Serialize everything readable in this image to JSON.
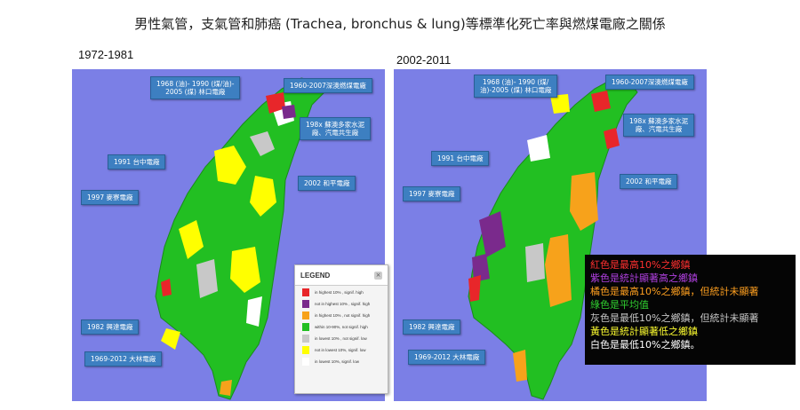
{
  "title": "男性氣管，支氣管和肺癌 (Trachea, bronchus & lung)等標準化死亡率與燃煤電廠之關係",
  "panels": [
    {
      "period": "1972-1981"
    },
    {
      "period": "2002-2011"
    }
  ],
  "callouts_left": [
    "1968 (油)- 1990 (煤/油)-\n2005 (煤) 林口電廠",
    "1960-2007深澳燃煤電廠",
    "198x 蘇澳多家水泥\n廠、汽電共生廠",
    "1991 台中電廠",
    "2002 和平電廠",
    "1997 麥寮電廠",
    "1982 興達電廠",
    "1969-2012 大林電廠"
  ],
  "callouts_right": [
    "1968 (油)- 1990 (煤/\n油)-2005 (煤) 林口電廠",
    "1960-2007深澳燃煤電廠",
    "198x 蘇澳多家水泥\n廠、汽電共生廠",
    "1991 台中電廠",
    "2002 和平電廠",
    "1997 麥寮電廠",
    "1982 興達電廠",
    "1969-2012 大林電廠"
  ],
  "legend": {
    "title": "LEGEND",
    "close": "×",
    "items": [
      {
        "label": "in highest 10% , signif. high",
        "color": "#e8262a"
      },
      {
        "label": "not in highest 10% , signif. high",
        "color": "#7a2a8c"
      },
      {
        "label": "in highest 10% , not signif. high",
        "color": "#f7a21b"
      },
      {
        "label": "within 10-90%, not signif. high",
        "color": "#22bf22"
      },
      {
        "label": "in lowest 10% , not signif. low",
        "color": "#c8c8c8"
      },
      {
        "label": "not in lowest 10%, signif. low",
        "color": "#ffff00"
      },
      {
        "label": "in lowest 10%, signif. low",
        "color": "#ffffff"
      }
    ]
  },
  "explanation": [
    {
      "text": "紅色是最高10%之鄉鎮",
      "color": "#ff3030"
    },
    {
      "text": "紫色是統計顯著高之鄉鎮",
      "color": "#b040e0"
    },
    {
      "text": "橘色是最高10%之鄉鎮，但統計未顯著",
      "color": "#ffa020"
    },
    {
      "text": "綠色是平均值",
      "color": "#30d030"
    },
    {
      "text": "灰色是最低10%之鄉鎮，但統計未顯著",
      "color": "#c8c8c8"
    },
    {
      "text": "黃色是統計顯著低之鄉鎮",
      "color": "#ffff30"
    },
    {
      "text": "白色是最低10%之鄉鎮。",
      "color": "#ffffff"
    }
  ]
}
